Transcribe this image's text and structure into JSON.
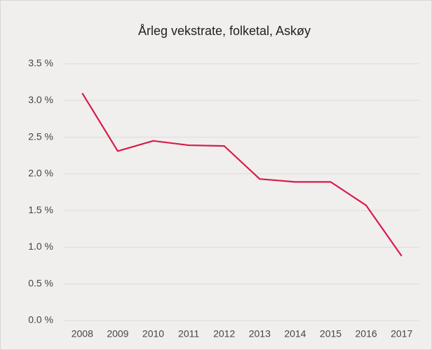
{
  "chart_data": {
    "type": "line",
    "title": "Årleg vekstrate, folketal, Askøy",
    "categories": [
      "2008",
      "2009",
      "2010",
      "2011",
      "2012",
      "2013",
      "2014",
      "2015",
      "2016",
      "2017"
    ],
    "series": [
      {
        "name": "Askøy",
        "color": "#d81b4a",
        "values": [
          3.1,
          2.31,
          2.45,
          2.39,
          2.38,
          1.93,
          1.89,
          1.89,
          1.57,
          0.88
        ]
      }
    ],
    "ylim": [
      0,
      3.5
    ],
    "yticks": [
      {
        "value": 0,
        "label": "0.0 %"
      },
      {
        "value": 0.5,
        "label": "0.5 %"
      },
      {
        "value": 1,
        "label": "1.0 %"
      },
      {
        "value": 1.5,
        "label": "1.5 %"
      },
      {
        "value": 2,
        "label": "2.0 %"
      },
      {
        "value": 2.5,
        "label": "2.5 %"
      },
      {
        "value": 3,
        "label": "3.0 %"
      },
      {
        "value": 3.5,
        "label": "3.5 %"
      }
    ],
    "grid": true
  }
}
